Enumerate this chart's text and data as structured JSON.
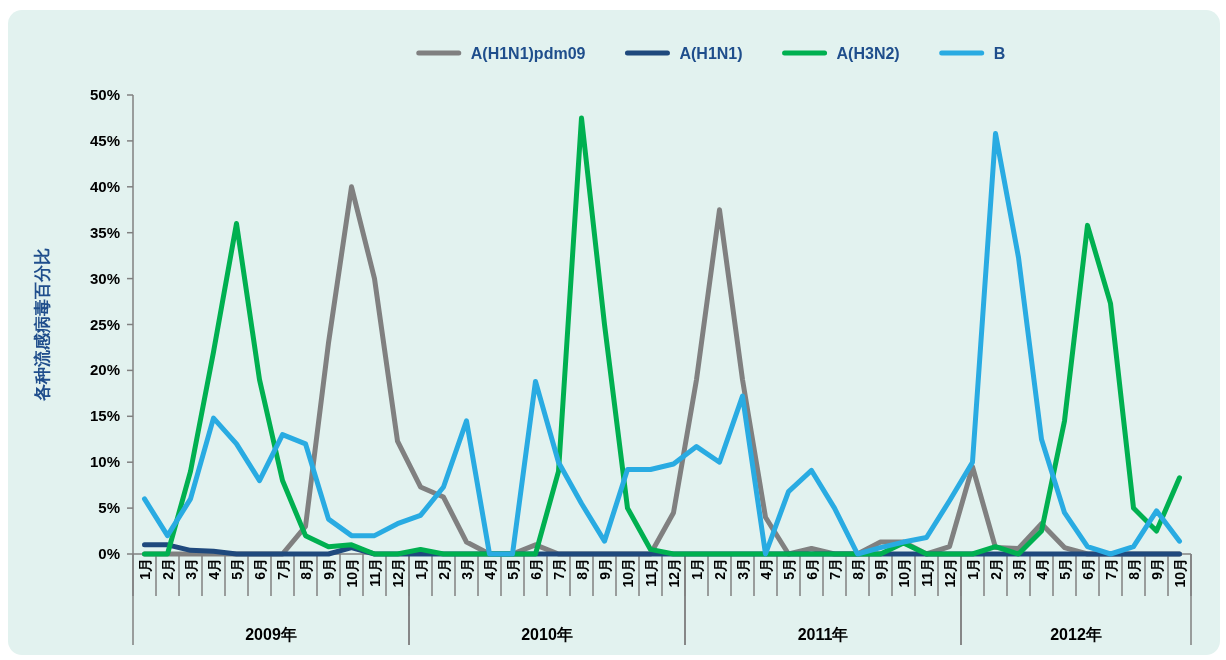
{
  "chart_data": {
    "type": "line",
    "ylabel": "各种流感病毒百分比",
    "categories": [
      "1月",
      "2月",
      "3月",
      "4月",
      "5月",
      "6月",
      "7月",
      "8月",
      "9月",
      "10月",
      "11月",
      "12月",
      "1月",
      "2月",
      "3月",
      "4月",
      "5月",
      "6月",
      "7月",
      "8月",
      "9月",
      "10月",
      "11月",
      "12月",
      "1月",
      "2月",
      "3月",
      "4月",
      "5月",
      "6月",
      "7月",
      "8月",
      "9月",
      "10月",
      "11月",
      "12月",
      "1月",
      "2月",
      "3月",
      "4月",
      "5月",
      "6月",
      "7月",
      "8月",
      "9月",
      "10月"
    ],
    "series": [
      {
        "name": "A(H1N1)pdm09",
        "color": "#808080",
        "values": [
          0,
          0,
          0,
          0,
          0,
          0,
          0,
          3,
          23,
          40,
          30,
          12.3,
          7.3,
          6.2,
          1.3,
          0,
          0,
          1,
          0,
          0,
          0,
          0,
          0,
          4.5,
          19,
          37.5,
          19,
          4,
          0,
          0.6,
          0,
          0,
          1.3,
          1.3,
          0,
          0.8,
          9.5,
          0.7,
          0.6,
          3.3,
          0.7,
          0,
          0,
          0,
          0,
          0
        ]
      },
      {
        "name": "A(H1N1)",
        "color": "#1f497d",
        "values": [
          1,
          1,
          0.4,
          0.3,
          0,
          0,
          0,
          0,
          0,
          0.7,
          0,
          0,
          0,
          0,
          0,
          0,
          0,
          0,
          0,
          0,
          0,
          0,
          0,
          0,
          0,
          0,
          0,
          0,
          0,
          0,
          0,
          0,
          0,
          0,
          0,
          0,
          0,
          0,
          0,
          0,
          0,
          0,
          0,
          0,
          0,
          0
        ]
      },
      {
        "name": "A(H3N2)",
        "color": "#00b050",
        "values": [
          0,
          0,
          9,
          22,
          36,
          19,
          8,
          2,
          0.8,
          1,
          0,
          0,
          0.5,
          0,
          0,
          0,
          0,
          0,
          9,
          47.5,
          25,
          5,
          0.5,
          0,
          0,
          0,
          0,
          0,
          0,
          0,
          0,
          0,
          0,
          1.2,
          0,
          0,
          0,
          0.8,
          0,
          2.5,
          14.5,
          35.8,
          27.3,
          5,
          2.5,
          8.3
        ]
      },
      {
        "name": "B",
        "color": "#29abe2",
        "values": [
          6,
          2,
          6,
          14.8,
          12,
          8,
          13,
          12,
          3.8,
          2,
          2,
          3.3,
          4.2,
          7.3,
          14.5,
          0,
          0,
          18.8,
          10,
          5.5,
          1.4,
          9.2,
          9.2,
          9.8,
          11.7,
          10,
          17.2,
          0,
          6.8,
          9.1,
          5,
          0,
          0.7,
          1.3,
          1.8,
          5.8,
          10,
          45.8,
          32.3,
          12.5,
          4.5,
          0.8,
          0,
          0.8,
          4.7,
          1.4
        ]
      }
    ],
    "ylim": [
      0,
      50
    ],
    "yticks": [
      {
        "value": 0,
        "label": "0%"
      },
      {
        "value": 5,
        "label": "5%"
      },
      {
        "value": 10,
        "label": "10%"
      },
      {
        "value": 15,
        "label": "15%"
      },
      {
        "value": 20,
        "label": "20%"
      },
      {
        "value": 25,
        "label": "25%"
      },
      {
        "value": 30,
        "label": "30%"
      },
      {
        "value": 35,
        "label": "35%"
      },
      {
        "value": 40,
        "label": "40%"
      },
      {
        "value": 45,
        "label": "45%"
      },
      {
        "value": 50,
        "label": "50%"
      }
    ],
    "annotations": [
      "2009年",
      "2010年",
      "2011年",
      "2012年"
    ],
    "legend": "top",
    "grid": false,
    "marker": "none",
    "line_style": "solid"
  }
}
